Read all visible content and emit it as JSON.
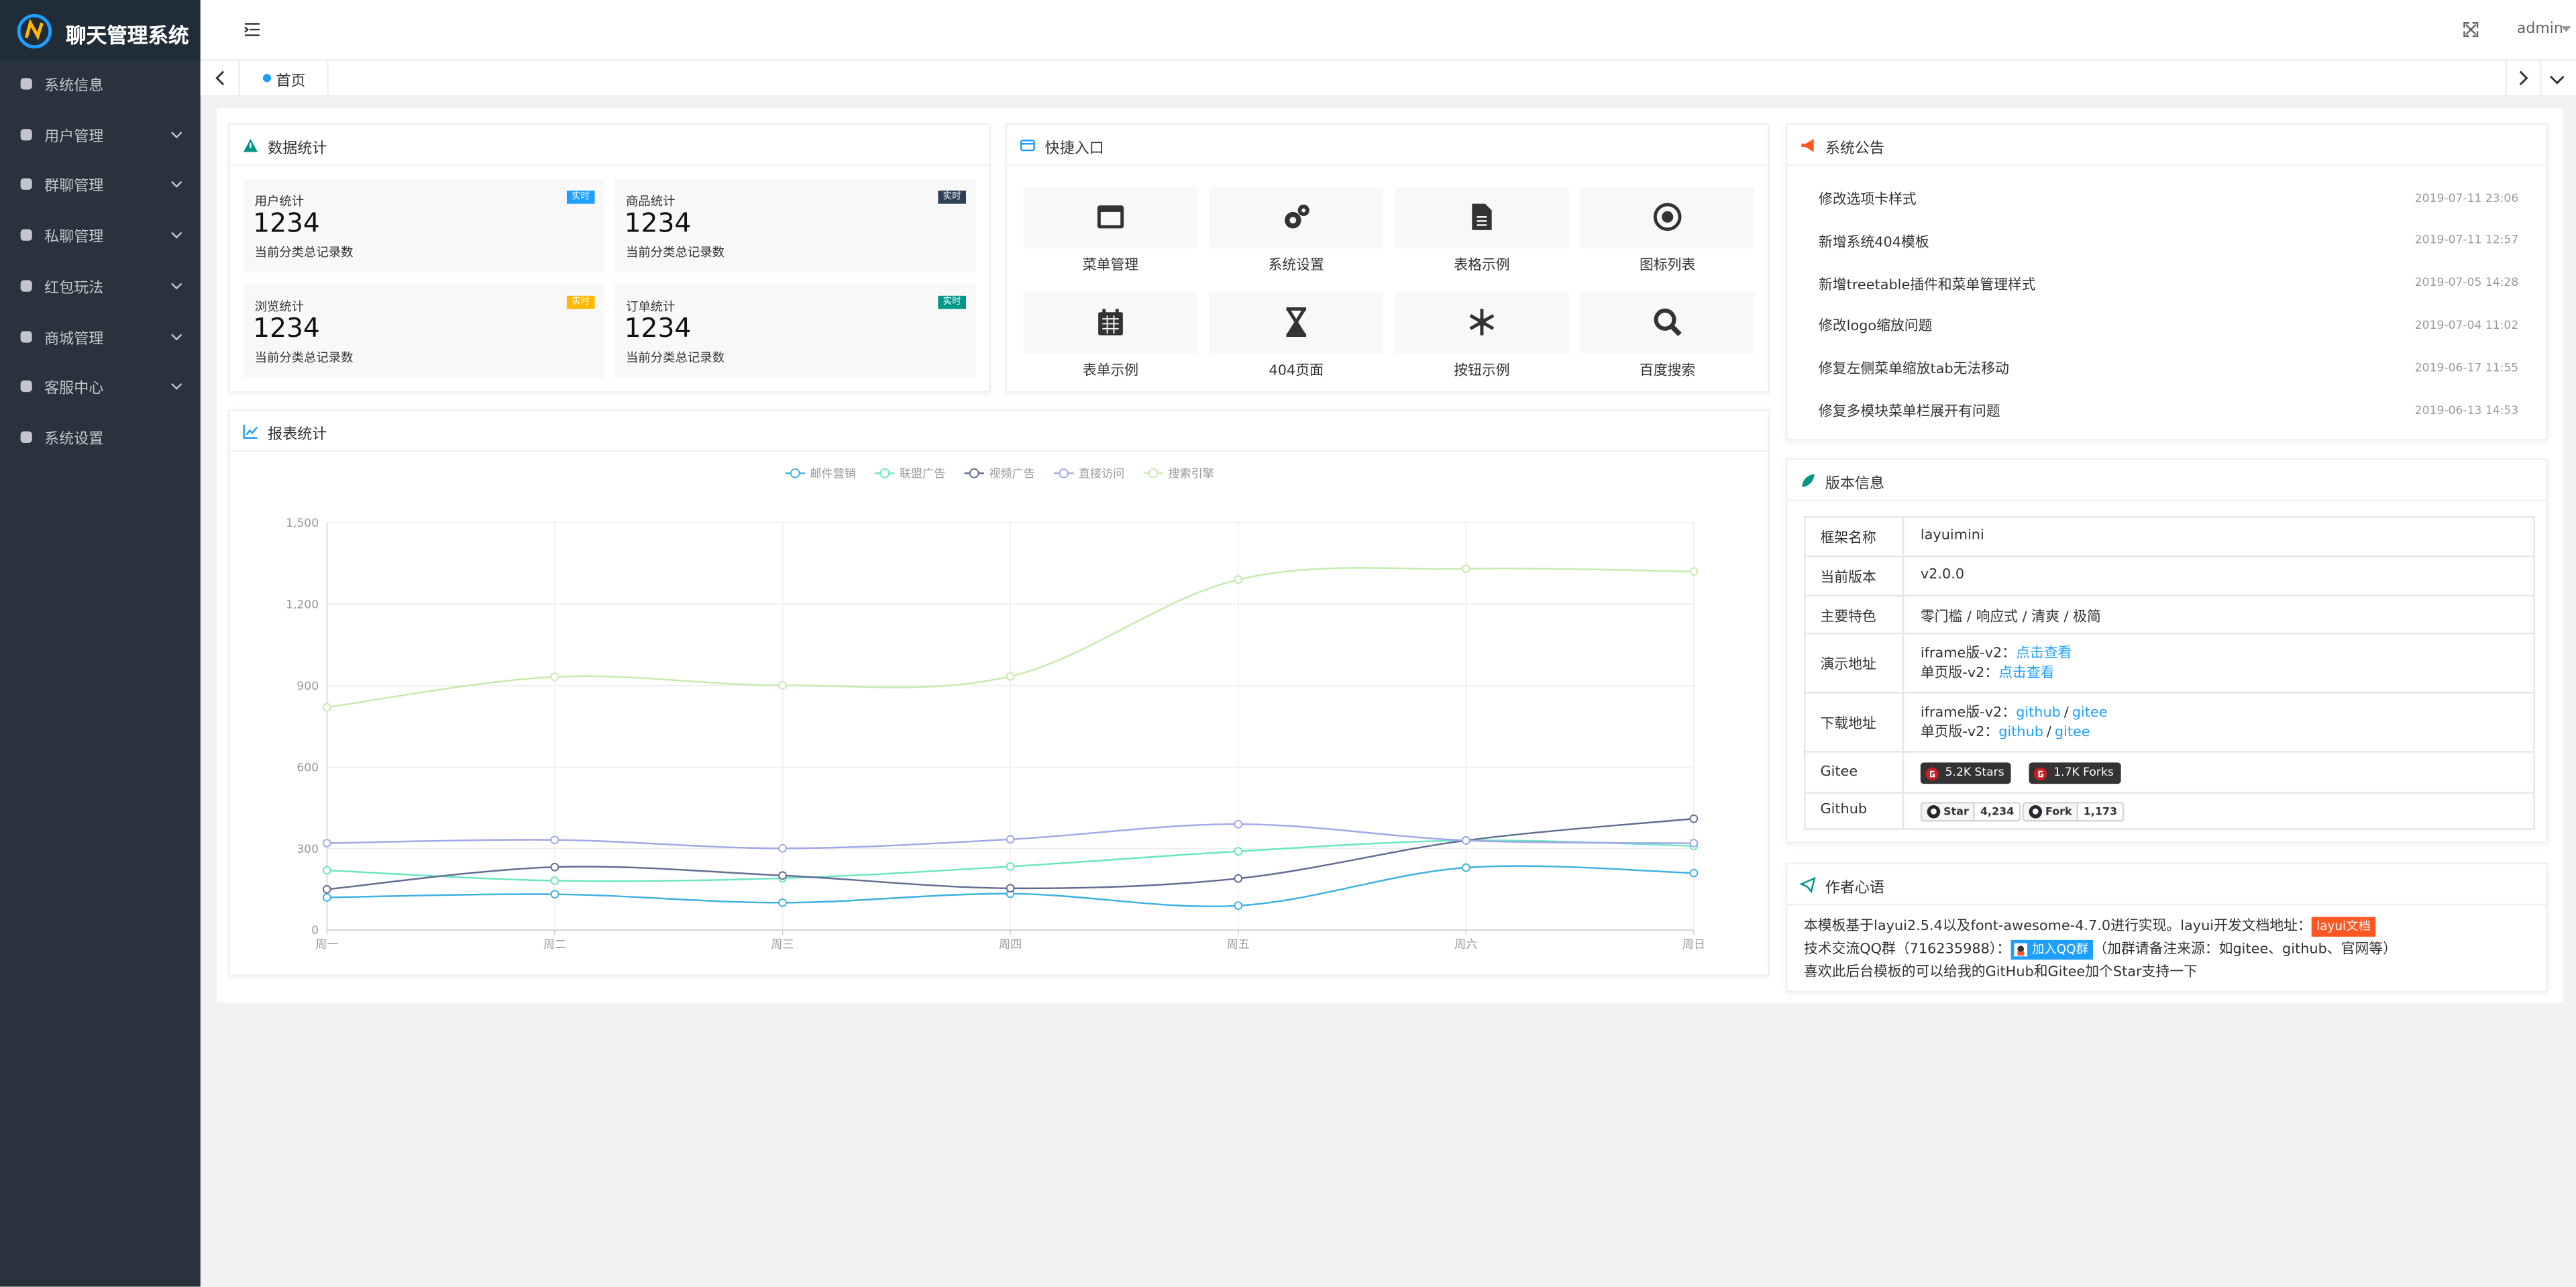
{
  "sidebar": {
    "logo": "聊天管理系统",
    "menu": [
      {
        "label": "系统信息",
        "expandable": false
      },
      {
        "label": "用户管理",
        "expandable": true
      },
      {
        "label": "群聊管理",
        "expandable": true
      },
      {
        "label": "私聊管理",
        "expandable": true
      },
      {
        "label": "红包玩法",
        "expandable": true
      },
      {
        "label": "商城管理",
        "expandable": true
      },
      {
        "label": "客服中心",
        "expandable": true
      },
      {
        "label": "系统设置",
        "expandable": false
      }
    ]
  },
  "header": {
    "user": "admin"
  },
  "tabs": [
    "首页"
  ],
  "stats": {
    "title": "数据统计",
    "cards": [
      {
        "label": "用户统计",
        "badge": "实时",
        "badge_color": "#1e9fff",
        "value": 1234,
        "note": "当前分类总记录数"
      },
      {
        "label": "商品统计",
        "badge": "实时",
        "badge_color": "#2f4056",
        "value": 1234,
        "note": "当前分类总记录数"
      },
      {
        "label": "浏览统计",
        "badge": "实时",
        "badge_color": "#ffb800",
        "value": 1234,
        "note": "当前分类总记录数"
      },
      {
        "label": "订单统计",
        "badge": "实时",
        "badge_color": "#009688",
        "value": 1234,
        "note": "当前分类总记录数"
      }
    ]
  },
  "shortcuts": {
    "title": "快捷入口",
    "items": [
      "菜单管理",
      "系统设置",
      "表格示例",
      "图标列表",
      "表单示例",
      "404页面",
      "按钮示例",
      "百度搜索"
    ]
  },
  "notices": {
    "title": "系统公告",
    "items": [
      {
        "text": "修改选项卡样式",
        "date": "2019-07-11 23:06"
      },
      {
        "text": "新增系统404模板",
        "date": "2019-07-11 12:57"
      },
      {
        "text": "新增treetable插件和菜单管理样式",
        "date": "2019-07-05 14:28"
      },
      {
        "text": "修改logo缩放问题",
        "date": "2019-07-04 11:02"
      },
      {
        "text": "修复左侧菜单缩放tab无法移动",
        "date": "2019-06-17 11:55"
      },
      {
        "text": "修复多模块菜单栏展开有问题",
        "date": "2019-06-13 14:53"
      }
    ]
  },
  "chart_data": {
    "type": "line",
    "title": "报表统计",
    "categories": [
      "周一",
      "周二",
      "周三",
      "周四",
      "周五",
      "周六",
      "周日"
    ],
    "series": [
      {
        "name": "邮件营销",
        "color": "#3fb1e3",
        "values": [
          120,
          132,
          101,
          134,
          90,
          230,
          210
        ]
      },
      {
        "name": "联盟广告",
        "color": "#6be6c1",
        "values": [
          220,
          182,
          191,
          234,
          290,
          330,
          310
        ]
      },
      {
        "name": "视频广告",
        "color": "#626c91",
        "values": [
          150,
          232,
          201,
          154,
          190,
          330,
          410
        ]
      },
      {
        "name": "直接访问",
        "color": "#a0a7e6",
        "values": [
          320,
          332,
          301,
          334,
          390,
          330,
          320
        ]
      },
      {
        "name": "搜索引擎",
        "color": "#c4ebad",
        "values": [
          820,
          932,
          901,
          934,
          1290,
          1330,
          1320
        ]
      }
    ],
    "ylim": [
      0,
      1500
    ],
    "yticks": [
      0,
      300,
      600,
      900,
      {
        "value": 1200,
        "label": "1,200"
      },
      {
        "value": 1500,
        "label": "1,500"
      }
    ],
    "grid": true,
    "legend": "top"
  },
  "version": {
    "title": "版本信息",
    "rows": [
      {
        "key": "框架名称",
        "value": "layuimini"
      },
      {
        "key": "当前版本",
        "value": "v2.0.0"
      },
      {
        "key": "主要特色",
        "value": "零门槛 / 响应式 / 清爽 / 极简"
      },
      {
        "key": "演示地址",
        "lines": [
          {
            "prefix": "iframe版-v2：",
            "links": [
              "点击查看"
            ]
          },
          {
            "prefix": "单页版-v2：",
            "links": [
              "点击查看"
            ]
          }
        ]
      },
      {
        "key": "下载地址",
        "separator": "/",
        "lines": [
          {
            "prefix": "iframe版-v2：",
            "links": [
              "github",
              "gitee"
            ]
          },
          {
            "prefix": "单页版-v2：",
            "links": [
              "github",
              "gitee"
            ]
          }
        ]
      },
      {
        "key": "Gitee",
        "badges": [
          "5.2K Stars",
          "1.7K Forks"
        ]
      },
      {
        "key": "Github",
        "buttons": [
          {
            "label": "Star",
            "count": "4,234"
          },
          {
            "label": "Fork",
            "count": "1,173"
          }
        ]
      }
    ]
  },
  "author": {
    "title": "作者心语",
    "lines": [
      [
        {
          "text": "本模板基于layui2.5.4以及font-awesome-4.7.0进行实现。layui开发文档地址："
        },
        {
          "tag": "layui文档",
          "color": "#ff5722"
        }
      ],
      [
        {
          "text": "技术交流QQ群（716235988）："
        },
        {
          "tag": "加入QQ群",
          "color": "#1e9fff"
        },
        {
          "text": "（加群请备注来源：如gitee、github、官网等）"
        }
      ],
      [
        {
          "text": "喜欢此后台模板的可以给我的GitHub和Gitee加个Star支持一下"
        }
      ]
    ]
  }
}
